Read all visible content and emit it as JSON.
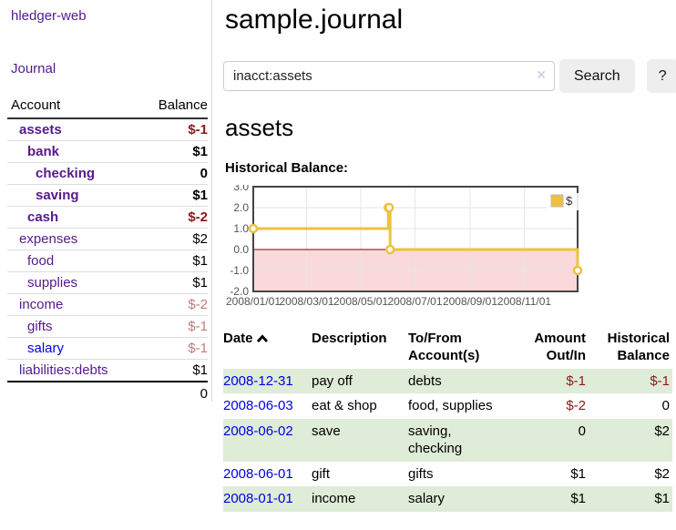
{
  "sidebar": {
    "brand": "hledger-web",
    "nav": {
      "journal_label": "Journal"
    },
    "accounts_table": {
      "headers": {
        "account": "Account",
        "balance": "Balance"
      },
      "rows": [
        {
          "name": "assets",
          "depth": 1,
          "bold": true,
          "balance": "$-1",
          "balance_style": "neg-strong"
        },
        {
          "name": "bank",
          "depth": 2,
          "bold": true,
          "balance": "$1",
          "balance_style": ""
        },
        {
          "name": "checking",
          "depth": 3,
          "bold": true,
          "balance": "0",
          "balance_style": ""
        },
        {
          "name": "saving",
          "depth": 3,
          "bold": true,
          "balance": "$1",
          "balance_style": ""
        },
        {
          "name": "cash",
          "depth": 2,
          "bold": true,
          "balance": "$-2",
          "balance_style": "neg-strong"
        },
        {
          "name": "expenses",
          "depth": 1,
          "bold": false,
          "balance": "$2",
          "balance_style": ""
        },
        {
          "name": "food",
          "depth": 2,
          "bold": false,
          "balance": "$1",
          "balance_style": ""
        },
        {
          "name": "supplies",
          "depth": 2,
          "bold": false,
          "balance": "$1",
          "balance_style": ""
        },
        {
          "name": "income",
          "depth": 1,
          "bold": false,
          "balance": "$-2",
          "balance_style": "neg-soft"
        },
        {
          "name": "gifts",
          "depth": 2,
          "bold": false,
          "balance": "$-1",
          "balance_style": "neg-soft"
        },
        {
          "name": "salary",
          "depth": 2,
          "bold": false,
          "balance": "$-1",
          "balance_style": "neg-soft",
          "unvisited": true
        },
        {
          "name": "liabilities:debts",
          "depth": 1,
          "bold": false,
          "balance": "$1",
          "balance_style": ""
        }
      ],
      "total": "0"
    }
  },
  "header": {
    "title": "sample.journal"
  },
  "search": {
    "value": "inacct:assets",
    "clear_icon": "✕",
    "button_label": "Search",
    "help_label": "?"
  },
  "account_page": {
    "heading": "assets",
    "chart_label": "Historical Balance:"
  },
  "chart_data": {
    "type": "line",
    "style": "step",
    "series": [
      {
        "name": "$",
        "color": "#edc240",
        "points": [
          {
            "date": "2008-01-01",
            "value": 1
          },
          {
            "date": "2008-06-01",
            "value": 2
          },
          {
            "date": "2008-06-02",
            "value": 2
          },
          {
            "date": "2008-06-03",
            "value": 0
          },
          {
            "date": "2008-12-31",
            "value": -1
          }
        ]
      }
    ],
    "x_range": [
      "2008-01-01",
      "2008-12-31"
    ],
    "x_ticks": [
      {
        "date": "2008-01-01",
        "label": "2008/01/01"
      },
      {
        "date": "2008-03-01",
        "label": "2008/03/01"
      },
      {
        "date": "2008-05-01",
        "label": "2008/05/01"
      },
      {
        "date": "2008-07-01",
        "label": "2008/07/01"
      },
      {
        "date": "2008-09-01",
        "label": "2008/09/01"
      },
      {
        "date": "2008-11-01",
        "label": "2008/11/01"
      }
    ],
    "y_ticks": [
      "3.0",
      "2.0",
      "1.0",
      "0.0",
      "-1.0",
      "-2.0"
    ],
    "ylim": [
      -2,
      3
    ],
    "grid": true,
    "legend": {
      "label": "$",
      "position": "top-right"
    },
    "negative_region_fill": "#f9d9d9",
    "zero_line_color": "#8b0000"
  },
  "register_table": {
    "headers": {
      "date": "Date",
      "sort_icon": "chevron-up",
      "description": "Description",
      "accounts": "To/From Account(s)",
      "amount": "Amount Out/In",
      "balance": "Historical Balance"
    },
    "rows": [
      {
        "date": "2008-12-31",
        "description": "pay off",
        "accounts": "debts",
        "amount": "$-1",
        "amount_neg": true,
        "balance": "$-1",
        "balance_neg": true
      },
      {
        "date": "2008-06-03",
        "description": "eat & shop",
        "accounts": "food, supplies",
        "amount": "$-2",
        "amount_neg": true,
        "balance": "0",
        "balance_neg": false
      },
      {
        "date": "2008-06-02",
        "description": "save",
        "accounts": "saving, checking",
        "amount": "0",
        "amount_neg": false,
        "balance": "$2",
        "balance_neg": false
      },
      {
        "date": "2008-06-01",
        "description": "gift",
        "accounts": "gifts",
        "amount": "$1",
        "amount_neg": false,
        "balance": "$2",
        "balance_neg": false
      },
      {
        "date": "2008-01-01",
        "description": "income",
        "accounts": "salary",
        "amount": "$1",
        "amount_neg": false,
        "balance": "$1",
        "balance_neg": false
      }
    ]
  },
  "colors": {
    "link_purple": "#551a8b",
    "link_blue": "#0000e8",
    "negative_strong": "#8b1a1a",
    "negative_soft": "#c27b7b",
    "row_stripe_green": "#dfecd7",
    "chart_line_gold": "#edc240",
    "chart_negative_fill": "#f9d9d9",
    "zero_line_dark_red": "#8b0000",
    "button_gray": "#eeeeee"
  }
}
